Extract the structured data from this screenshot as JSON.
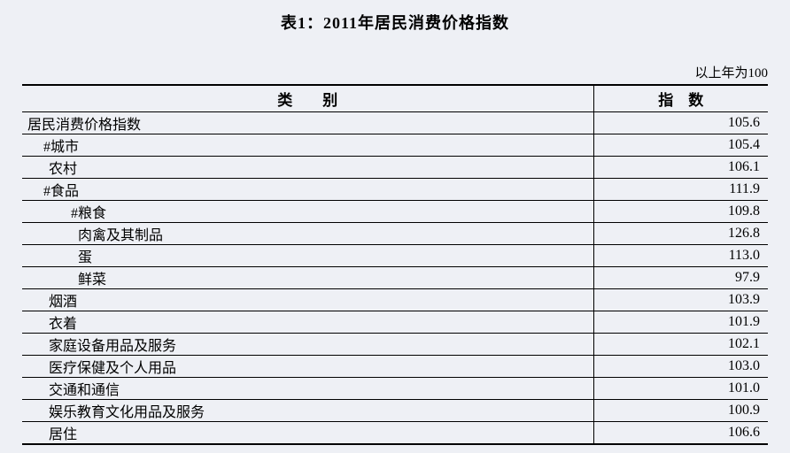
{
  "page_title": "表1：2011年居民消费价格指数",
  "note": "以上年为100",
  "table": {
    "header": {
      "category": "类　　别",
      "index": "指　数"
    },
    "rows": [
      {
        "label": "居民消费价格指数",
        "indent": 0,
        "value": "105.6"
      },
      {
        "label": "#城市",
        "indent": 1,
        "value": "105.4"
      },
      {
        "label": "农村",
        "indent": 2,
        "value": "106.1"
      },
      {
        "label": "#食品",
        "indent": 1,
        "value": "111.9"
      },
      {
        "label": "#粮食",
        "indent": 3,
        "value": "109.8"
      },
      {
        "label": "肉禽及其制品",
        "indent": 4,
        "value": "126.8"
      },
      {
        "label": "蛋",
        "indent": 4,
        "value": "113.0"
      },
      {
        "label": "鲜菜",
        "indent": 4,
        "value": "97.9"
      },
      {
        "label": "烟酒",
        "indent": 2,
        "value": "103.9"
      },
      {
        "label": "衣着",
        "indent": 2,
        "value": "101.9"
      },
      {
        "label": "家庭设备用品及服务",
        "indent": 2,
        "value": "102.1"
      },
      {
        "label": "医疗保健及个人用品",
        "indent": 2,
        "value": "103.0"
      },
      {
        "label": "交通和通信",
        "indent": 2,
        "value": "101.0"
      },
      {
        "label": "娱乐教育文化用品及服务",
        "indent": 2,
        "value": "100.9"
      },
      {
        "label": "居住",
        "indent": 2,
        "value": "106.6"
      }
    ]
  },
  "chart_data": {
    "type": "table",
    "title": "表1：2011年居民消费价格指数",
    "note": "以上年为100",
    "columns": [
      "类别",
      "指数"
    ],
    "categories": [
      "居民消费价格指数",
      "#城市",
      "农村",
      "#食品",
      "#粮食",
      "肉禽及其制品",
      "蛋",
      "鲜菜",
      "烟酒",
      "衣着",
      "家庭设备用品及服务",
      "医疗保健及个人用品",
      "交通和通信",
      "娱乐教育文化用品及服务",
      "居住"
    ],
    "values": [
      105.6,
      105.4,
      106.1,
      111.9,
      109.8,
      126.8,
      113.0,
      97.9,
      103.9,
      101.9,
      102.1,
      103.0,
      101.0,
      100.9,
      106.6
    ]
  },
  "colors": {
    "background": "#eef0f5",
    "border": "#000000",
    "text": "#000000"
  }
}
